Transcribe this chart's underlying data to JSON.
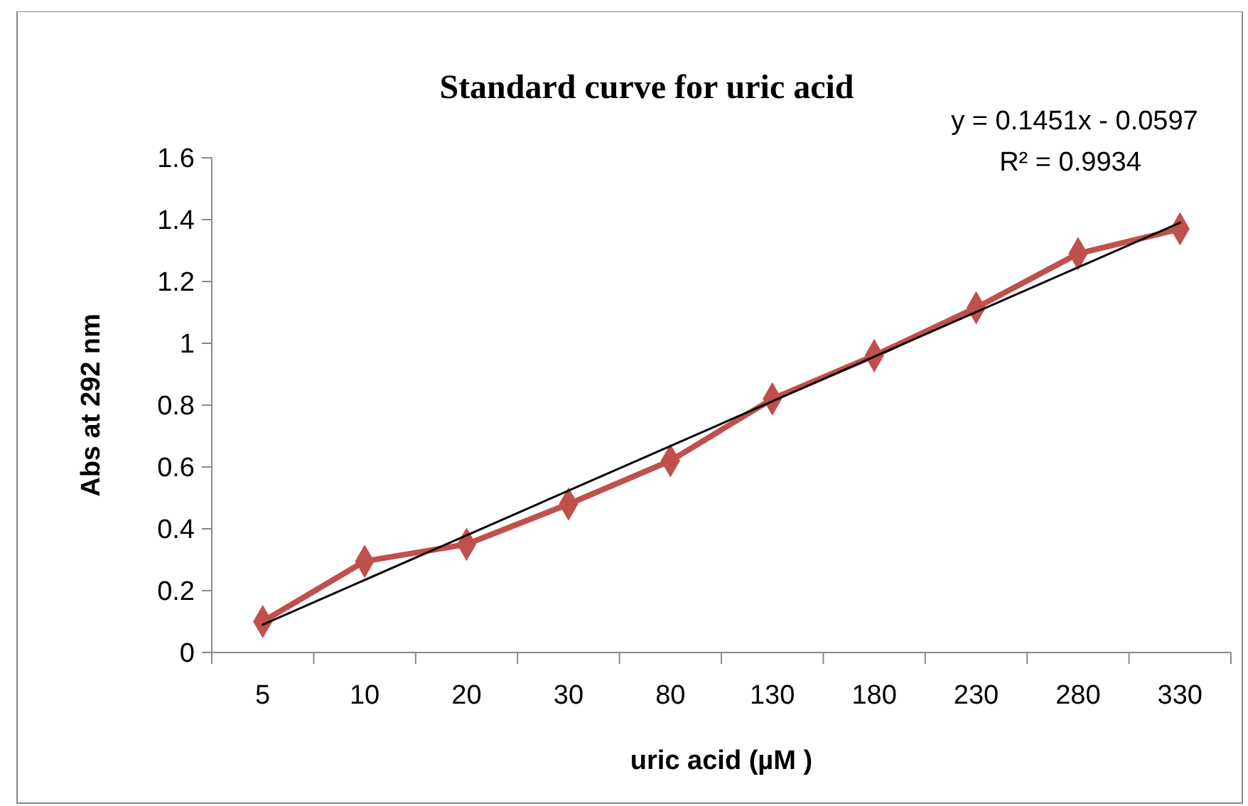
{
  "chart_data": {
    "type": "line",
    "title": "Standard curve for uric acid",
    "xlabel": "uric acid (µM )",
    "ylabel": "Abs at 292 nm",
    "categories": [
      "5",
      "10",
      "20",
      "30",
      "80",
      "130",
      "180",
      "230",
      "280",
      "330"
    ],
    "series": [
      {
        "color": "#c0504d",
        "values": [
          0.1,
          0.295,
          0.35,
          0.48,
          0.62,
          0.82,
          0.96,
          1.115,
          1.29,
          1.37
        ],
        "marker": "diamond",
        "line_style": "solid"
      },
      {
        "type": "line",
        "x": [
          "5",
          "330"
        ],
        "values": [
          0.09,
          1.39
        ],
        "color": "#000000",
        "marker": "none",
        "line_style": "solid"
      }
    ],
    "ylim": [
      0,
      1.6
    ],
    "yticks": [
      0,
      0.2,
      0.4,
      0.6,
      0.8,
      1,
      1.2,
      1.4,
      1.6
    ],
    "annotations": [
      "y = 0.1451x - 0.0597",
      "R² = 0.9934"
    ]
  }
}
